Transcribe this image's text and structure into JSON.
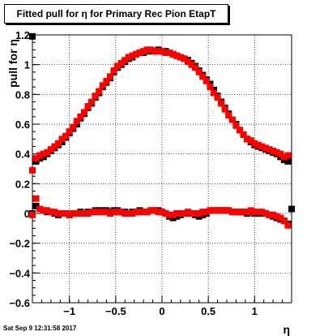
{
  "title": "Fitted pull for  η for Primary Rec Pion EtapT",
  "footer": "Sat Sep  9 12:31:58 2017",
  "chart_data": {
    "type": "scatter",
    "xlabel": "η",
    "ylabel": "pull for  η",
    "xlim": [
      -1.4,
      1.4
    ],
    "ylim": [
      -0.6,
      1.2
    ],
    "grid": true,
    "x_ticks": [
      -1,
      -0.5,
      0,
      0.5,
      1
    ],
    "x_tick_labels": [
      "−1",
      "−0.5",
      "0",
      "0.5",
      "1"
    ],
    "y_ticks": [
      -0.6,
      -0.4,
      -0.2,
      0,
      0.2,
      0.4,
      0.6,
      0.8,
      1,
      1.2
    ],
    "y_tick_labels": [
      "−0.6",
      "−0.4",
      "−0.2",
      "0",
      "0.2",
      "0.4",
      "0.6",
      "0.8",
      "1",
      "1.2"
    ],
    "series": [
      {
        "color": "#000000",
        "marker": "square",
        "subsets": [
          {
            "x": [
              -1.4,
              -1.36,
              -1.32,
              -1.28,
              -1.24,
              -1.2,
              -1.16,
              -1.12,
              -1.08,
              -1.04,
              -1.0,
              -0.96,
              -0.92,
              -0.88,
              -0.84,
              -0.8,
              -0.76,
              -0.72,
              -0.68,
              -0.64,
              -0.6,
              -0.56,
              -0.52,
              -0.48,
              -0.44,
              -0.4,
              -0.36,
              -0.32,
              -0.28,
              -0.24,
              -0.2,
              -0.16,
              -0.12,
              -0.08,
              -0.04,
              0.0,
              0.04,
              0.08,
              0.12,
              0.16,
              0.2,
              0.24,
              0.28,
              0.32,
              0.36,
              0.4,
              0.44,
              0.48,
              0.52,
              0.56,
              0.6,
              0.64,
              0.68,
              0.72,
              0.76,
              0.8,
              0.84,
              0.88,
              0.92,
              0.96,
              1.0,
              1.04,
              1.08,
              1.12,
              1.16,
              1.2,
              1.24,
              1.28,
              1.32,
              1.36,
              1.4
            ],
            "y": [
              1.19,
              0.35,
              0.37,
              0.38,
              0.4,
              0.42,
              0.44,
              0.46,
              0.48,
              0.51,
              0.54,
              0.57,
              0.6,
              0.64,
              0.67,
              0.71,
              0.74,
              0.78,
              0.81,
              0.85,
              0.88,
              0.91,
              0.95,
              0.98,
              1.0,
              1.02,
              1.04,
              1.05,
              1.07,
              1.08,
              1.08,
              1.09,
              1.09,
              1.09,
              1.1,
              1.09,
              1.09,
              1.08,
              1.07,
              1.06,
              1.05,
              1.04,
              1.03,
              1.01,
              0.99,
              0.96,
              0.93,
              0.9,
              0.87,
              0.83,
              0.79,
              0.75,
              0.71,
              0.67,
              0.63,
              0.6,
              0.56,
              0.53,
              0.5,
              0.48,
              0.46,
              0.45,
              0.44,
              0.43,
              0.42,
              0.41,
              0.4,
              0.38,
              0.36,
              0.35,
              0.03
            ]
          },
          {
            "x": [
              -1.4,
              -1.36,
              -1.32,
              -1.28,
              -1.24,
              -1.2,
              -1.16,
              -1.12,
              -1.08,
              -1.04,
              -1.0,
              -0.96,
              -0.92,
              -0.88,
              -0.84,
              -0.8,
              -0.76,
              -0.72,
              -0.68,
              -0.64,
              -0.6,
              -0.56,
              -0.52,
              -0.48,
              -0.44,
              -0.4,
              -0.36,
              -0.32,
              -0.28,
              -0.24,
              -0.2,
              -0.16,
              -0.12,
              -0.08,
              -0.04,
              0.0,
              0.04,
              0.08,
              0.12,
              0.16,
              0.2,
              0.24,
              0.28,
              0.32,
              0.36,
              0.4,
              0.44,
              0.48,
              0.52,
              0.56,
              0.6,
              0.64,
              0.68,
              0.72,
              0.76,
              0.8,
              0.84,
              0.88,
              0.92,
              0.96,
              1.0,
              1.04,
              1.08,
              1.12,
              1.16,
              1.2,
              1.24,
              1.28,
              1.32,
              1.36
            ],
            "y": [
              0.0,
              0.05,
              0.03,
              0.02,
              0.01,
              0.01,
              0.0,
              -0.01,
              0.0,
              0.0,
              -0.01,
              0.0,
              0.0,
              0.01,
              0.0,
              0.01,
              0.01,
              0.02,
              0.02,
              0.02,
              0.02,
              0.01,
              0.02,
              0.02,
              0.01,
              0.01,
              0.0,
              0.01,
              0.01,
              0.02,
              0.01,
              0.01,
              0.02,
              0.02,
              0.02,
              0.01,
              0.0,
              -0.02,
              -0.03,
              -0.02,
              -0.01,
              0.0,
              0.0,
              0.0,
              -0.01,
              -0.02,
              -0.01,
              0.0,
              0.02,
              0.02,
              0.02,
              0.02,
              0.02,
              0.02,
              0.01,
              0.01,
              0.01,
              0.01,
              0.0,
              0.01,
              0.0,
              0.0,
              0.0,
              0.0,
              -0.01,
              -0.02,
              -0.03,
              -0.04,
              -0.05,
              -0.07
            ]
          }
        ]
      },
      {
        "color": "#ff0000",
        "marker": "square",
        "subsets": [
          {
            "x": [
              -1.4,
              -1.36,
              -1.32,
              -1.28,
              -1.24,
              -1.2,
              -1.16,
              -1.12,
              -1.08,
              -1.04,
              -1.0,
              -0.96,
              -0.92,
              -0.88,
              -0.84,
              -0.8,
              -0.76,
              -0.72,
              -0.68,
              -0.64,
              -0.6,
              -0.56,
              -0.52,
              -0.48,
              -0.44,
              -0.4,
              -0.36,
              -0.32,
              -0.28,
              -0.24,
              -0.2,
              -0.16,
              -0.12,
              -0.08,
              -0.04,
              0.0,
              0.04,
              0.08,
              0.12,
              0.16,
              0.2,
              0.24,
              0.28,
              0.32,
              0.36,
              0.4,
              0.44,
              0.48,
              0.52,
              0.56,
              0.6,
              0.64,
              0.68,
              0.72,
              0.76,
              0.8,
              0.84,
              0.88,
              0.92,
              0.96,
              1.0,
              1.04,
              1.08,
              1.12,
              1.16,
              1.2,
              1.24,
              1.28,
              1.32,
              1.36
            ],
            "y": [
              0.29,
              0.37,
              0.39,
              0.4,
              0.41,
              0.43,
              0.45,
              0.47,
              0.5,
              0.52,
              0.55,
              0.58,
              0.62,
              0.65,
              0.68,
              0.72,
              0.75,
              0.79,
              0.82,
              0.86,
              0.89,
              0.92,
              0.96,
              0.99,
              1.01,
              1.03,
              1.05,
              1.06,
              1.07,
              1.08,
              1.09,
              1.1,
              1.1,
              1.09,
              1.09,
              1.09,
              1.08,
              1.08,
              1.07,
              1.06,
              1.05,
              1.04,
              1.02,
              1.0,
              0.98,
              0.95,
              0.92,
              0.89,
              0.85,
              0.81,
              0.78,
              0.74,
              0.7,
              0.66,
              0.63,
              0.59,
              0.56,
              0.53,
              0.5,
              0.49,
              0.47,
              0.46,
              0.45,
              0.44,
              0.43,
              0.42,
              0.41,
              0.4,
              0.38,
              0.39
            ]
          },
          {
            "x": [
              -1.4,
              -1.36,
              -1.32,
              -1.28,
              -1.24,
              -1.2,
              -1.16,
              -1.12,
              -1.08,
              -1.04,
              -1.0,
              -0.96,
              -0.92,
              -0.88,
              -0.84,
              -0.8,
              -0.76,
              -0.72,
              -0.68,
              -0.64,
              -0.6,
              -0.56,
              -0.52,
              -0.48,
              -0.44,
              -0.4,
              -0.36,
              -0.32,
              -0.28,
              -0.24,
              -0.2,
              -0.16,
              -0.12,
              -0.08,
              -0.04,
              0.0,
              0.04,
              0.08,
              0.12,
              0.16,
              0.2,
              0.24,
              0.28,
              0.32,
              0.36,
              0.4,
              0.44,
              0.48,
              0.52,
              0.56,
              0.6,
              0.64,
              0.68,
              0.72,
              0.76,
              0.8,
              0.84,
              0.88,
              0.92,
              0.96,
              1.0,
              1.04,
              1.08,
              1.12,
              1.16,
              1.2,
              1.24,
              1.28,
              1.32,
              1.36
            ],
            "y": [
              -0.01,
              0.1,
              0.03,
              0.02,
              0.02,
              0.01,
              0.01,
              0.0,
              0.0,
              0.0,
              -0.01,
              0.0,
              0.0,
              0.0,
              0.0,
              0.0,
              0.01,
              0.01,
              0.01,
              0.01,
              0.01,
              0.0,
              0.01,
              0.01,
              0.01,
              0.0,
              0.0,
              0.0,
              0.01,
              0.01,
              0.01,
              0.01,
              0.02,
              0.02,
              0.01,
              0.01,
              0.0,
              -0.01,
              -0.01,
              0.0,
              0.0,
              0.0,
              0.01,
              0.0,
              0.0,
              0.0,
              0.01,
              0.01,
              0.02,
              0.02,
              0.02,
              0.02,
              0.02,
              0.02,
              0.01,
              0.01,
              0.01,
              0.01,
              0.01,
              0.02,
              0.01,
              0.01,
              0.01,
              0.0,
              -0.01,
              -0.01,
              -0.02,
              -0.03,
              -0.05,
              -0.08
            ]
          }
        ]
      }
    ]
  }
}
